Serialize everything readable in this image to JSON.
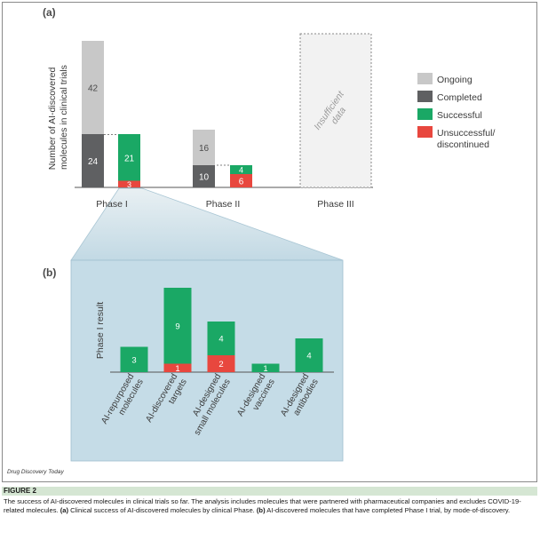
{
  "chart_data": [
    {
      "type": "bar",
      "panel_label": "(a)",
      "ylabel": "Number of AI-discovered molecules in clinical trials",
      "ylabel_lines": [
        "Number of AI-discovered",
        "molecules in clinical trials"
      ],
      "categories": [
        "Phase I",
        "Phase II",
        "Phase III"
      ],
      "legend_position": "right",
      "legend": [
        {
          "label": "Ongoing",
          "color": "#c8c8c8"
        },
        {
          "label": "Completed",
          "color": "#5f6062"
        },
        {
          "label": "Successful",
          "color": "#1aa865"
        },
        {
          "label": "Unsuccessful/\ndiscontinued",
          "color": "#e8473e"
        }
      ],
      "stacks": [
        {
          "category": "Phase I",
          "kind": "status",
          "segments": [
            {
              "series": "Completed",
              "value": 24,
              "label": "24",
              "color": "#5f6062"
            },
            {
              "series": "Ongoing",
              "value": 42,
              "label": "42",
              "color": "#c8c8c8"
            }
          ]
        },
        {
          "category": "Phase I",
          "kind": "outcome",
          "segments": [
            {
              "series": "Unsuccessful/discontinued",
              "value": 3,
              "label": "3",
              "color": "#e8473e"
            },
            {
              "series": "Successful",
              "value": 21,
              "label": "21",
              "color": "#1aa865"
            }
          ]
        },
        {
          "category": "Phase II",
          "kind": "status",
          "segments": [
            {
              "series": "Completed",
              "value": 10,
              "label": "10",
              "color": "#5f6062"
            },
            {
              "series": "Ongoing",
              "value": 16,
              "label": "16",
              "color": "#c8c8c8"
            }
          ]
        },
        {
          "category": "Phase II",
          "kind": "outcome",
          "segments": [
            {
              "series": "Unsuccessful/discontinued",
              "value": 6,
              "label": "6",
              "color": "#e8473e"
            },
            {
              "series": "Successful",
              "value": 4,
              "label": "4",
              "color": "#1aa865"
            }
          ]
        }
      ],
      "phase3_note": "Insufficient data",
      "phase3_note_lines": [
        "Insufficient",
        "data"
      ],
      "ylim": [
        0,
        66
      ]
    },
    {
      "type": "bar",
      "panel_label": "(b)",
      "ylabel": "Phase I result",
      "categories": [
        "AI-repurposed molecules",
        "AI-discovered targets",
        "AI-designed small molecules",
        "AI-designed vaccines",
        "AI-designed antibodies"
      ],
      "category_lines": [
        [
          "AI-repurposed",
          "molecules"
        ],
        [
          "AI-discovered",
          "targets"
        ],
        [
          "AI-designed",
          "small molecules"
        ],
        [
          "AI-designed",
          "vaccines"
        ],
        [
          "AI-designed",
          "antibodies"
        ]
      ],
      "series": [
        {
          "name": "Unsuccessful/discontinued",
          "color": "#e8473e",
          "values": [
            0,
            1,
            2,
            0,
            0
          ]
        },
        {
          "name": "Successful",
          "color": "#1aa865",
          "values": [
            3,
            9,
            4,
            1,
            4
          ]
        }
      ],
      "ylim": [
        0,
        10
      ]
    }
  ],
  "source_text": "Drug Discovery Today",
  "caption": {
    "figure_label": "FIGURE 2",
    "text_intro": "The success of AI-discovered molecules in clinical trials so far. The analysis includes molecules that were partnered with pharmaceutical companies and excludes COVID-19-related molecules. ",
    "part_a_label": "(a)",
    "part_a_text": " Clinical success of AI-discovered molecules by clinical Phase. ",
    "part_b_label": "(b)",
    "part_b_text": " AI-discovered molecules that have completed Phase I trial, by mode-of-discovery."
  },
  "colors": {
    "panel_border": "#8a8a8a",
    "zoom_fill": "#c9dde7",
    "zoom_edge": "#9fbfcf",
    "caption_bar": "#d5e6d3"
  }
}
